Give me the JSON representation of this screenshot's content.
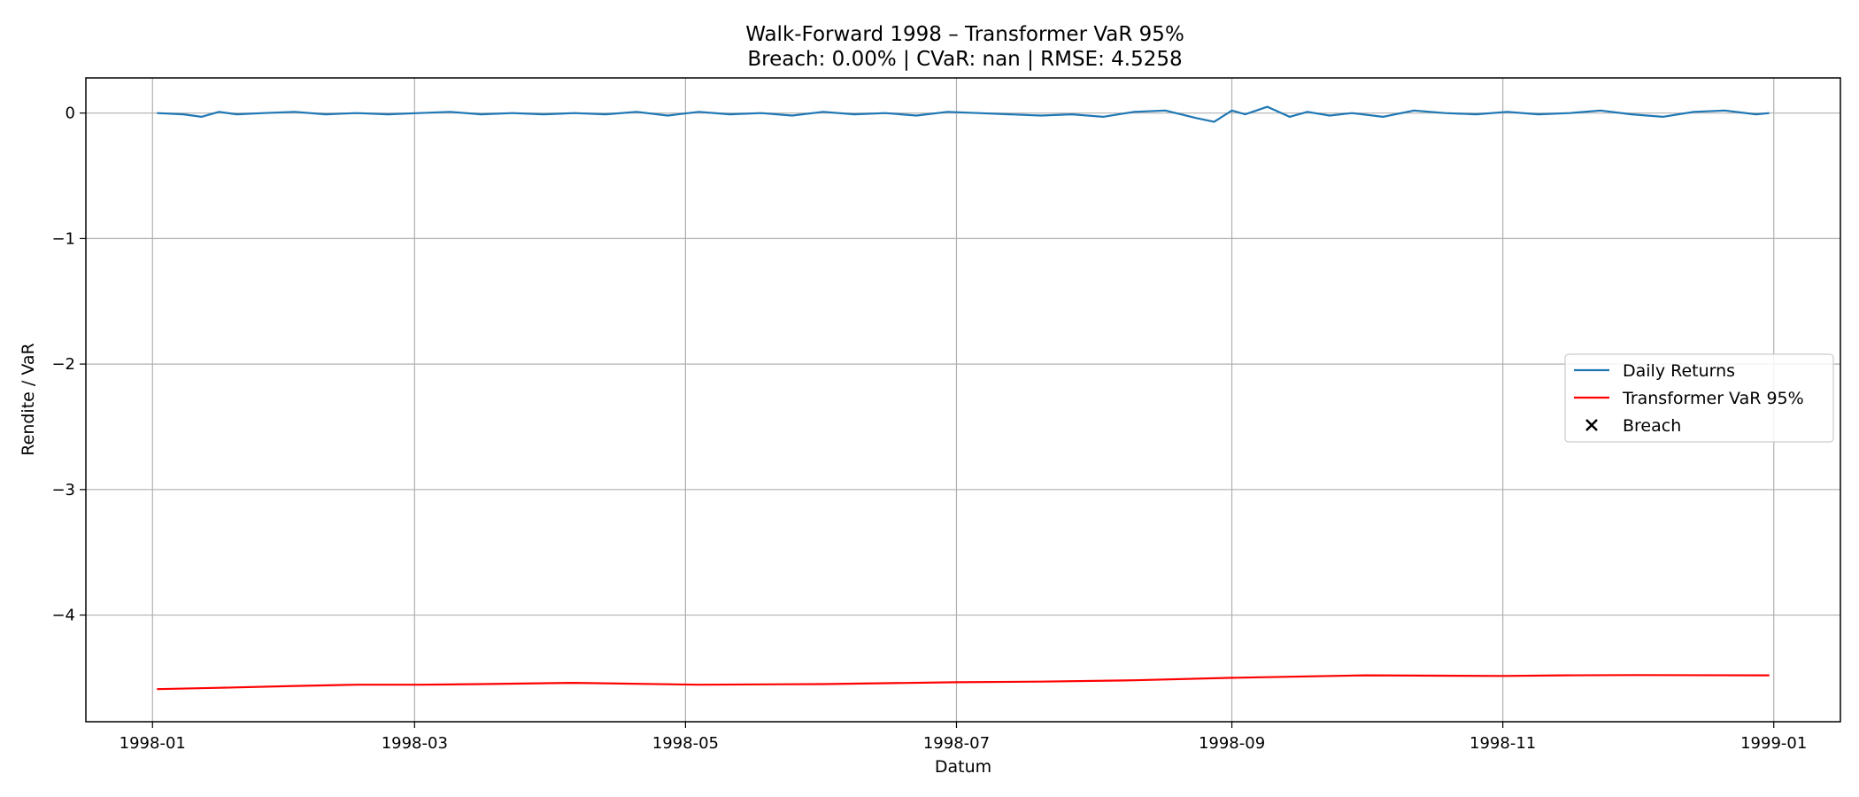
{
  "chart_data": {
    "type": "line",
    "title": "Walk-Forward 1998 – Transformer VaR 95%",
    "subtitle": "Breach: 0.00% | CVaR: nan | RMSE: 4.5258",
    "xlabel": "Datum",
    "ylabel": "Rendite / VaR",
    "x_range": [
      "1997-12-17",
      "1999-01-16"
    ],
    "ylim": [
      -4.85,
      0.28
    ],
    "x_ticks": [
      "1998-01-01",
      "1998-03-01",
      "1998-05-01",
      "1998-07-01",
      "1998-09-01",
      "1998-11-01",
      "1999-01-01"
    ],
    "x_tick_labels": [
      "1998-01",
      "1998-03",
      "1998-05",
      "1998-07",
      "1998-09",
      "1998-11",
      "1999-01"
    ],
    "y_ticks": [
      0,
      -1,
      -2,
      -3,
      -4
    ],
    "y_tick_labels": [
      "0",
      "−1",
      "−2",
      "−3",
      "−4"
    ],
    "grid": true,
    "legend_position": "center-right",
    "series": [
      {
        "name": "Daily Returns",
        "kind": "line",
        "color": "#1f77b4",
        "x": [
          "1998-01-02",
          "1998-01-08",
          "1998-01-12",
          "1998-01-16",
          "1998-01-20",
          "1998-01-26",
          "1998-02-02",
          "1998-02-09",
          "1998-02-16",
          "1998-02-23",
          "1998-03-02",
          "1998-03-09",
          "1998-03-16",
          "1998-03-23",
          "1998-03-30",
          "1998-04-06",
          "1998-04-13",
          "1998-04-20",
          "1998-04-27",
          "1998-05-04",
          "1998-05-11",
          "1998-05-18",
          "1998-05-25",
          "1998-06-01",
          "1998-06-08",
          "1998-06-15",
          "1998-06-22",
          "1998-06-29",
          "1998-07-06",
          "1998-07-13",
          "1998-07-20",
          "1998-07-27",
          "1998-08-03",
          "1998-08-10",
          "1998-08-17",
          "1998-08-24",
          "1998-08-28",
          "1998-09-01",
          "1998-09-04",
          "1998-09-09",
          "1998-09-14",
          "1998-09-18",
          "1998-09-23",
          "1998-09-28",
          "1998-10-05",
          "1998-10-12",
          "1998-10-19",
          "1998-10-26",
          "1998-11-02",
          "1998-11-09",
          "1998-11-16",
          "1998-11-23",
          "1998-11-30",
          "1998-12-07",
          "1998-12-14",
          "1998-12-21",
          "1998-12-28",
          "1998-12-31"
        ],
        "values": [
          0.0,
          -0.01,
          -0.03,
          0.01,
          -0.01,
          0.0,
          0.01,
          -0.01,
          0.0,
          -0.01,
          0.0,
          0.01,
          -0.01,
          0.0,
          -0.01,
          0.0,
          -0.01,
          0.01,
          -0.02,
          0.01,
          -0.01,
          0.0,
          -0.02,
          0.01,
          -0.01,
          0.0,
          -0.02,
          0.01,
          0.0,
          -0.01,
          -0.02,
          -0.01,
          -0.03,
          0.01,
          0.02,
          -0.04,
          -0.07,
          0.02,
          -0.01,
          0.05,
          -0.03,
          0.01,
          -0.02,
          0.0,
          -0.03,
          0.02,
          0.0,
          -0.01,
          0.01,
          -0.01,
          0.0,
          0.02,
          -0.01,
          -0.03,
          0.01,
          0.02,
          -0.01,
          0.0
        ]
      },
      {
        "name": "Transformer VaR 95%",
        "kind": "line",
        "color": "#ff0000",
        "x": [
          "1998-01-02",
          "1998-01-16",
          "1998-02-02",
          "1998-02-16",
          "1998-03-02",
          "1998-03-16",
          "1998-04-06",
          "1998-05-04",
          "1998-06-01",
          "1998-07-01",
          "1998-07-20",
          "1998-08-10",
          "1998-09-01",
          "1998-10-01",
          "1998-11-01",
          "1998-11-15",
          "1998-12-01",
          "1998-12-31"
        ],
        "values": [
          -4.59,
          -4.58,
          -4.565,
          -4.555,
          -4.555,
          -4.55,
          -4.54,
          -4.555,
          -4.55,
          -4.535,
          -4.53,
          -4.52,
          -4.5,
          -4.48,
          -4.485,
          -4.48,
          -4.478,
          -4.48
        ]
      },
      {
        "name": "Breach",
        "kind": "scatter",
        "marker": "x",
        "color": "#000000",
        "x": [],
        "values": []
      }
    ]
  }
}
